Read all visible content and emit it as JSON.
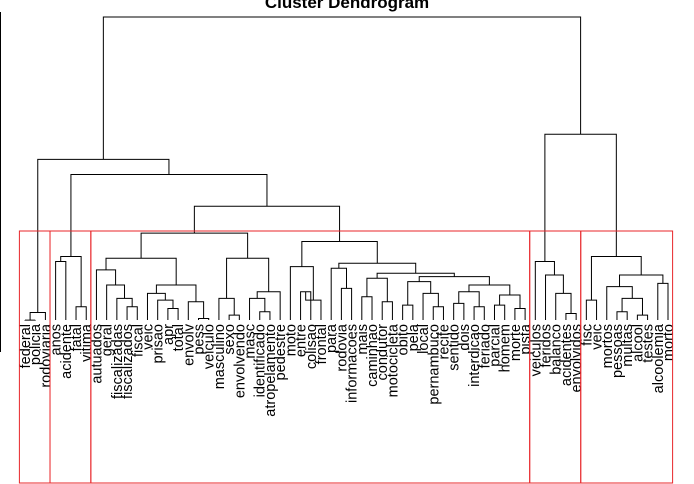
{
  "chart_data": {
    "type": "dendrogram",
    "title": "Cluster Dendrogram",
    "xlabel": "",
    "ylabel": "",
    "ylim": [
      0,
      1
    ],
    "highlight_color": "#e8262a",
    "leaves": [
      "federal",
      "policia",
      "rodoviaria",
      "anos",
      "acidente",
      "fatal",
      "vitima",
      "autuados",
      "geral",
      "fiscalizadas",
      "fiscalizados",
      "fiscal",
      "veic",
      "prisao",
      "apr",
      "total",
      "envolv",
      "pess",
      "veiculo",
      "masculino",
      "sexo",
      "envolvendo",
      "masc",
      "identificado",
      "atropelamento",
      "pedestre",
      "moto",
      "entre",
      "colisao",
      "frontal",
      "para",
      "rodovia",
      "informacoes",
      "mais",
      "caminhao",
      "condutor",
      "motocicleta",
      "obito",
      "pela",
      "local",
      "pernambuco",
      "recife",
      "sentido",
      "dois",
      "interdicao",
      "feriado",
      "parcial",
      "homem",
      "morte",
      "pista",
      "veiculos",
      "feridos",
      "balanco",
      "acidentes",
      "envolvidos",
      "fisc",
      "veic",
      "mortos",
      "pessoas",
      "multas",
      "alcool",
      "testes",
      "alcoolemia",
      "morto"
    ],
    "merges": [
      {
        "a": 0,
        "b": 1,
        "h": 0.095
      },
      {
        "a": "m0",
        "b": 2,
        "h": 0.118
      },
      {
        "a": 3,
        "b": 4,
        "h": 0.27
      },
      {
        "a": 5,
        "b": 6,
        "h": 0.135
      },
      {
        "a": "m2",
        "b": "m3",
        "h": 0.285
      },
      {
        "a": 10,
        "b": 11,
        "h": 0.135
      },
      {
        "a": 9,
        "b": "m5",
        "h": 0.16
      },
      {
        "a": 8,
        "b": "m6",
        "h": 0.2
      },
      {
        "a": 7,
        "b": "m7",
        "h": 0.245
      },
      {
        "a": 14,
        "b": 15,
        "h": 0.13
      },
      {
        "a": 13,
        "b": "m9",
        "h": 0.155
      },
      {
        "a": 12,
        "b": "m10",
        "h": 0.175
      },
      {
        "a": 17,
        "b": 18,
        "h": 0.1
      },
      {
        "a": 16,
        "b": "m12",
        "h": 0.15
      },
      {
        "a": "m11",
        "b": "m13",
        "h": 0.2
      },
      {
        "a": "m8",
        "b": "m14",
        "h": 0.28
      },
      {
        "a": 20,
        "b": 21,
        "h": 0.11
      },
      {
        "a": 19,
        "b": "m16",
        "h": 0.16
      },
      {
        "a": 23,
        "b": 24,
        "h": 0.12
      },
      {
        "a": 22,
        "b": "m18",
        "h": 0.16
      },
      {
        "a": "m19",
        "b": 25,
        "h": 0.18
      },
      {
        "a": "m17",
        "b": "m20",
        "h": 0.28
      },
      {
        "a": "m15",
        "b": "m21",
        "h": 0.355
      },
      {
        "a": 27,
        "b": 28,
        "h": 0.18
      },
      {
        "a": "m23",
        "b": 29,
        "h": 0.155
      },
      {
        "a": 26,
        "b": "m24",
        "h": 0.255
      },
      {
        "a": 31,
        "b": 32,
        "h": 0.19
      },
      {
        "a": 30,
        "b": "m26",
        "h": 0.25
      },
      {
        "a": 33,
        "b": 34,
        "h": 0.165
      },
      {
        "a": 35,
        "b": 36,
        "h": 0.15
      },
      {
        "a": "m28",
        "b": "m29",
        "h": 0.22
      },
      {
        "a": 37,
        "b": 38,
        "h": 0.14
      },
      {
        "a": 40,
        "b": 41,
        "h": 0.135
      },
      {
        "a": 39,
        "b": "m32",
        "h": 0.175
      },
      {
        "a": "m31",
        "b": "m33",
        "h": 0.21
      },
      {
        "a": 42,
        "b": 43,
        "h": 0.145
      },
      {
        "a": 44,
        "b": 45,
        "h": 0.135
      },
      {
        "a": "m35",
        "b": "m36",
        "h": 0.18
      },
      {
        "a": 46,
        "b": 47,
        "h": 0.14
      },
      {
        "a": 48,
        "b": 49,
        "h": 0.13
      },
      {
        "a": "m38",
        "b": "m39",
        "h": 0.17
      },
      {
        "a": "m37",
        "b": "m40",
        "h": 0.2
      },
      {
        "a": "m34",
        "b": "m41",
        "h": 0.225
      },
      {
        "a": "m30",
        "b": "m42",
        "h": 0.235
      },
      {
        "a": "m27",
        "b": "m43",
        "h": 0.265
      },
      {
        "a": "m25",
        "b": "m44",
        "h": 0.33
      },
      {
        "a": "m22",
        "b": "m45",
        "h": 0.435
      },
      {
        "a": "m4",
        "b": "m46",
        "h": 0.53
      },
      {
        "a": "m1",
        "b": "m47",
        "h": 0.575
      },
      {
        "a": 53,
        "b": 54,
        "h": 0.115
      },
      {
        "a": 52,
        "b": "m49",
        "h": 0.175
      },
      {
        "a": 51,
        "b": "m50",
        "h": 0.23
      },
      {
        "a": 50,
        "b": "m51",
        "h": 0.27
      },
      {
        "a": 55,
        "b": 56,
        "h": 0.155
      },
      {
        "a": 58,
        "b": 59,
        "h": 0.12
      },
      {
        "a": 60,
        "b": 61,
        "h": 0.11
      },
      {
        "a": "m54",
        "b": "m55",
        "h": 0.16
      },
      {
        "a": 57,
        "b": "m56",
        "h": 0.195
      },
      {
        "a": 62,
        "b": 63,
        "h": 0.205
      },
      {
        "a": "m57",
        "b": "m58",
        "h": 0.23
      },
      {
        "a": "m53",
        "b": "m59",
        "h": 0.285
      },
      {
        "a": "m52",
        "b": "m60",
        "h": 0.65
      },
      {
        "a": "m48",
        "b": "m61",
        "h": 1.0
      }
    ],
    "clusters": [
      {
        "first": 0,
        "last": 2
      },
      {
        "first": 3,
        "last": 6
      },
      {
        "first": 7,
        "last": 49
      },
      {
        "first": 50,
        "last": 54
      },
      {
        "first": 55,
        "last": 63
      }
    ]
  }
}
